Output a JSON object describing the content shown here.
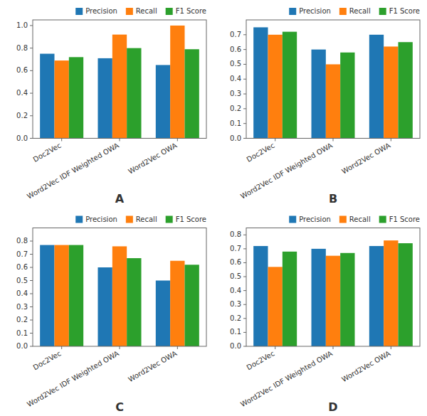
{
  "chart_data": [
    {
      "type": "bar",
      "title": "A",
      "categories": [
        "Doc2Vec",
        "Word2Vec IDF Weighted OWA",
        "Word2Vec OWA"
      ],
      "series": [
        {
          "name": "Precision",
          "color": "#1f77b4",
          "values": [
            0.75,
            0.71,
            0.65
          ]
        },
        {
          "name": "Recall",
          "color": "#ff7f0e",
          "values": [
            0.69,
            0.92,
            1.0
          ]
        },
        {
          "name": "F1 Score",
          "color": "#2ca02c",
          "values": [
            0.72,
            0.8,
            0.79
          ]
        }
      ],
      "ylim": [
        0.0,
        1.05
      ],
      "yticks": [
        {
          "value": 0.0,
          "label": "0.0"
        },
        0.2,
        0.4,
        0.6,
        0.8,
        {
          "value": 1.0,
          "label": "1.0"
        }
      ],
      "legend": "upper right",
      "grid": false
    },
    {
      "type": "bar",
      "title": "B",
      "categories": [
        "Doc2Vec",
        "Word2Vec IDF Weighted OWA",
        "Word2Vec OWA"
      ],
      "series": [
        {
          "name": "Precision",
          "color": "#1f77b4",
          "values": [
            0.75,
            0.6,
            0.7
          ]
        },
        {
          "name": "Recall",
          "color": "#ff7f0e",
          "values": [
            0.7,
            0.5,
            0.62
          ]
        },
        {
          "name": "F1 Score",
          "color": "#2ca02c",
          "values": [
            0.72,
            0.58,
            0.65
          ]
        }
      ],
      "ylim": [
        0.0,
        0.8
      ],
      "yticks": [
        {
          "value": 0.0,
          "label": "0.0"
        },
        0.1,
        0.2,
        0.3,
        0.4,
        0.5,
        0.6,
        0.7
      ],
      "legend": "upper right",
      "grid": false
    },
    {
      "type": "bar",
      "title": "C",
      "categories": [
        "Doc2Vec",
        "Word2Vec IDF Weighted OWA",
        "Word2Vec OWA"
      ],
      "series": [
        {
          "name": "Precision",
          "color": "#1f77b4",
          "values": [
            0.77,
            0.6,
            0.5
          ]
        },
        {
          "name": "Recall",
          "color": "#ff7f0e",
          "values": [
            0.77,
            0.76,
            0.65
          ]
        },
        {
          "name": "F1 Score",
          "color": "#2ca02c",
          "values": [
            0.77,
            0.67,
            0.62
          ]
        }
      ],
      "ylim": [
        0.0,
        0.9
      ],
      "yticks": [
        {
          "value": 0.0,
          "label": "0.0"
        },
        0.1,
        0.2,
        0.3,
        0.4,
        0.5,
        0.6,
        0.7,
        0.8
      ],
      "legend": "upper right",
      "grid": false
    },
    {
      "type": "bar",
      "title": "D",
      "categories": [
        "Doc2Vec",
        "Word2Vec IDF Weighted OWA",
        "Word2Vec OWA"
      ],
      "series": [
        {
          "name": "Precision",
          "color": "#1f77b4",
          "values": [
            0.72,
            0.7,
            0.72
          ]
        },
        {
          "name": "Recall",
          "color": "#ff7f0e",
          "values": [
            0.57,
            0.65,
            0.76
          ]
        },
        {
          "name": "F1 Score",
          "color": "#2ca02c",
          "values": [
            0.68,
            0.67,
            0.74
          ]
        }
      ],
      "ylim": [
        0.0,
        0.85
      ],
      "yticks": [
        {
          "value": 0.0,
          "label": "0.0"
        },
        0.1,
        0.2,
        0.3,
        0.4,
        0.5,
        0.6,
        0.7,
        0.8
      ],
      "legend": "upper right",
      "grid": false
    }
  ]
}
